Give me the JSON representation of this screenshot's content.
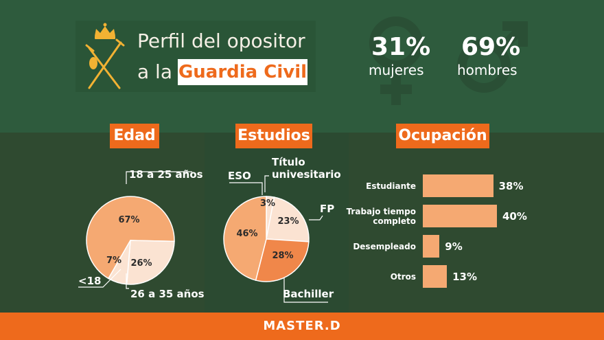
{
  "header": {
    "title_line1": "Perfil del opositor",
    "title_line2_pre": "a la",
    "title_highlight": "Guardia Civil"
  },
  "gender": {
    "women_value": "31%",
    "women_label": "mujeres",
    "men_value": "69%",
    "men_label": "hombres"
  },
  "sections": {
    "edad": "Edad",
    "estudios": "Estudios",
    "ocupacion": "Ocupación"
  },
  "footer": {
    "brand": "MASTER.D"
  },
  "colors": {
    "green_top": "#2e5b3d",
    "green_bottom": "#2f4a30",
    "orange": "#ee6a1c",
    "slice_light": "#f5a972",
    "slice_pale": "#fbe3d2",
    "slice_mid": "#f0874a"
  },
  "chart_data": [
    {
      "type": "pie",
      "title": "Edad",
      "slices": [
        {
          "label": "18 a 25 años",
          "value": 67,
          "display": "67%"
        },
        {
          "label": "26 a 35 años",
          "value": 26,
          "display": "26%"
        },
        {
          "label": "<18",
          "value": 7,
          "display": "7%"
        }
      ]
    },
    {
      "type": "pie",
      "title": "Estudios",
      "slices": [
        {
          "label": "Título universitario",
          "label_line1": "Título",
          "label_line2": "univesitario",
          "value": 3,
          "display": "3%"
        },
        {
          "label": "FP",
          "value": 23,
          "display": "23%"
        },
        {
          "label": "Bachiller",
          "value": 28,
          "display": "28%"
        },
        {
          "label": "ESO",
          "value": 46,
          "display": "46%"
        }
      ]
    },
    {
      "type": "bar",
      "title": "Ocupación",
      "orientation": "horizontal",
      "categories": [
        "Estudiante",
        "Trabajo tiempo completo",
        "Desempleado",
        "Otros"
      ],
      "category_lines": [
        [
          "Estudiante"
        ],
        [
          "Trabajo tiempo",
          "completo"
        ],
        [
          "Desempleado"
        ],
        [
          "Otros"
        ]
      ],
      "values": [
        38,
        40,
        9,
        13
      ],
      "value_labels": [
        "38%",
        "40%",
        "9%",
        "13%"
      ]
    }
  ]
}
